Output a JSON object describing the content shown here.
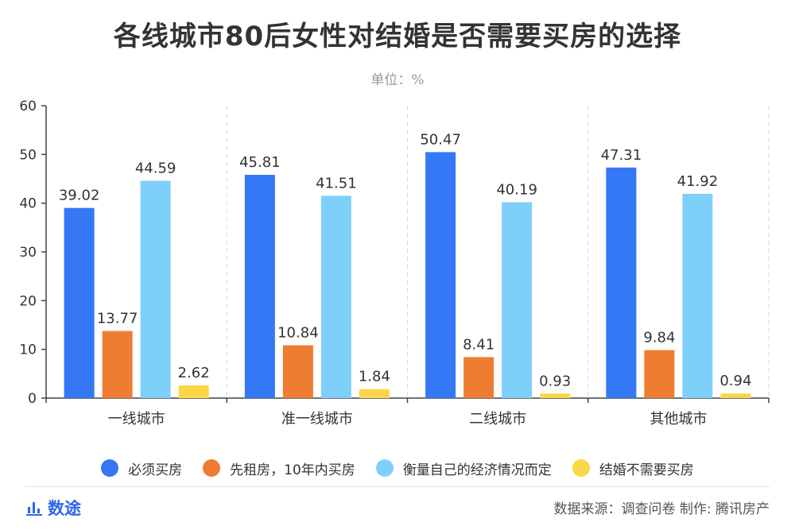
{
  "title": "各线城市80后女性对结婚是否需要买房的选择",
  "subtitle": "单位：%",
  "footer": {
    "brand": "数途",
    "source": "数据来源：调查问卷  制作: 腾讯房产"
  },
  "chart_data": {
    "type": "bar",
    "categories": [
      "一线城市",
      "准一线城市",
      "二线城市",
      "其他城市"
    ],
    "series": [
      {
        "name": "必须买房",
        "color": "#3478f6",
        "values": [
          39.02,
          45.81,
          50.47,
          47.31
        ]
      },
      {
        "name": "先租房，10年内买房",
        "color": "#ef7d31",
        "values": [
          13.77,
          10.84,
          8.41,
          9.84
        ]
      },
      {
        "name": "衡量自己的经济情况而定",
        "color": "#7fcffb",
        "values": [
          44.59,
          41.51,
          40.19,
          41.92
        ]
      },
      {
        "name": "结婚不需要买房",
        "color": "#fbd649",
        "values": [
          2.62,
          1.84,
          0.93,
          0.94
        ]
      }
    ],
    "ylim": [
      0,
      60
    ],
    "yticks": [
      0,
      10,
      20,
      30,
      40,
      50,
      60
    ],
    "grid": "vertical-dashed-separators",
    "legend": "bottom"
  }
}
